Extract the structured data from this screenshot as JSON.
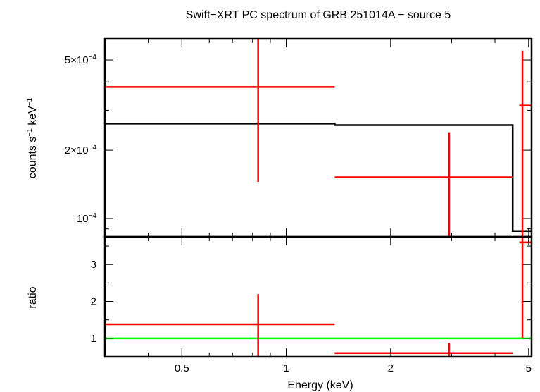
{
  "chart_data": {
    "type": "scatter",
    "title": "Swift−XRT PC spectrum of GRB 251014A − source 5",
    "xlabel": "Energy (keV)",
    "x_scale": "log",
    "xlim": [
      0.3,
      5.1
    ],
    "x_ticks": [
      {
        "value": 0.5,
        "label": "0.5"
      },
      {
        "value": 1,
        "label": "1"
      },
      {
        "value": 2,
        "label": "2"
      },
      {
        "value": 5,
        "label": "5"
      }
    ],
    "panels": [
      {
        "name": "spectrum",
        "ylabel_parts": [
          "counts s",
          "−1",
          " keV",
          "−1"
        ],
        "y_scale": "log",
        "ylim": [
          8.3e-05,
          0.00062
        ],
        "y_ticks": [
          {
            "value": 0.0001,
            "base": "10",
            "exp": "−4"
          },
          {
            "value": 0.0002,
            "base": "2×10",
            "exp": "−4"
          },
          {
            "value": 0.0005,
            "base": "5×10",
            "exp": "−4"
          }
        ],
        "data": [
          {
            "x": 0.83,
            "x_lo": 0.3,
            "x_hi": 1.38,
            "y": 0.00038,
            "y_lo": 0.000145,
            "y_hi": 0.00062
          },
          {
            "x": 2.95,
            "x_lo": 1.38,
            "x_hi": 4.5,
            "y": 0.000152,
            "y_lo": 8.3e-05,
            "y_hi": 0.00024
          },
          {
            "x": 4.8,
            "x_lo": 4.7,
            "x_hi": 5.1,
            "y": 0.000315,
            "y_lo": 8.3e-05,
            "y_hi": 0.00055
          }
        ],
        "model": [
          {
            "x_lo": 0.3,
            "x_hi": 1.38,
            "y": 0.000262
          },
          {
            "x_lo": 1.38,
            "x_hi": 4.5,
            "y": 0.000258
          },
          {
            "x_lo": 4.5,
            "x_hi": 5.1,
            "y": 8.8e-05
          }
        ]
      },
      {
        "name": "ratio",
        "ylabel": "ratio",
        "y_scale": "linear",
        "ylim": [
          0.5,
          3.75
        ],
        "y_ticks": [
          {
            "value": 1,
            "label": "1"
          },
          {
            "value": 2,
            "label": "2"
          },
          {
            "value": 3,
            "label": "3"
          }
        ],
        "data": [
          {
            "x": 0.83,
            "x_lo": 0.3,
            "x_hi": 1.38,
            "y": 1.38,
            "y_lo": 0.5,
            "y_hi": 2.2
          },
          {
            "x": 2.95,
            "x_lo": 1.38,
            "x_hi": 4.5,
            "y": 0.6,
            "y_lo": 0.5,
            "y_hi": 0.88
          },
          {
            "x": 4.8,
            "x_lo": 4.7,
            "x_hi": 5.1,
            "y": 3.6,
            "y_lo": 1.0,
            "y_hi": 3.75
          }
        ],
        "reference": 1
      }
    ],
    "colors": {
      "data": "#ff0000",
      "model": "#000000",
      "ratio_line": "#00ff00",
      "frame": "#000000"
    }
  }
}
